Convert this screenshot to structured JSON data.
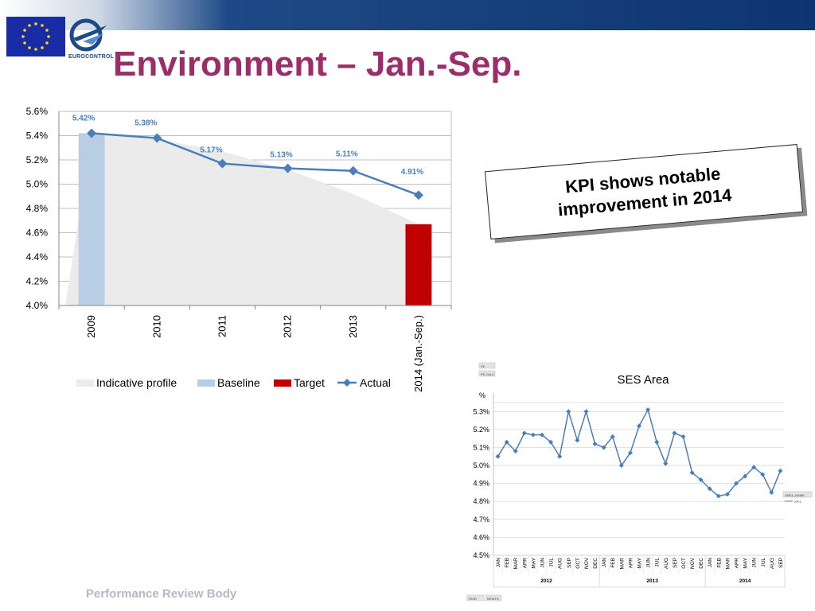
{
  "header": {
    "title": "Environment – Jan.-Sep.",
    "logo_text": "EUROCONTROL"
  },
  "callout": {
    "line1": "KPI shows notable",
    "line2": "improvement in 2014"
  },
  "footer": {
    "text": "Performance Review Body"
  },
  "colors": {
    "title": "#9b2d6b",
    "actual": "#4a7ebb",
    "baseline": "#b9cde5",
    "target": "#c00000",
    "profile": "#ebebeb",
    "grid": "#bfbfbf"
  },
  "chart_data": [
    {
      "type": "bar+line",
      "categories": [
        "2009",
        "2010",
        "2011",
        "2012",
        "2013",
        "2014  (Jan.-Sep.)"
      ],
      "ylim": [
        4.0,
        5.6
      ],
      "yticks": [
        "4.0%",
        "4.2%",
        "4.4%",
        "4.6%",
        "4.8%",
        "5.0%",
        "5.2%",
        "5.4%",
        "5.6%"
      ],
      "grid": true,
      "legend_position": "bottom",
      "series": [
        {
          "name": "Indicative profile",
          "kind": "area",
          "values": [
            5.42,
            5.37,
            5.27,
            5.12,
            4.92,
            4.67
          ]
        },
        {
          "name": "Baseline",
          "kind": "bar",
          "values": [
            5.42,
            null,
            null,
            null,
            null,
            null
          ]
        },
        {
          "name": "Target",
          "kind": "bar",
          "values": [
            null,
            null,
            null,
            null,
            null,
            4.67
          ]
        },
        {
          "name": "Actual",
          "kind": "line",
          "values": [
            5.42,
            5.38,
            5.17,
            5.13,
            5.11,
            4.91
          ],
          "labels": [
            "5.42%",
            "5.38%",
            "5.17%",
            "5.13%",
            "5.11%",
            "4.91%"
          ]
        }
      ]
    },
    {
      "type": "line",
      "title": "SES Area",
      "ylabel": "%",
      "ylim": [
        4.5,
        5.35
      ],
      "yticks": [
        "4.5%",
        "4.6%",
        "4.7%",
        "4.8%",
        "4.9%",
        "5.0%",
        "5.1%",
        "5.2%",
        "5.3%"
      ],
      "grid": true,
      "x": [
        "JAN",
        "FEB",
        "MAR",
        "APR",
        "MAY",
        "JUN",
        "JUL",
        "AUG",
        "SEP",
        "OCT",
        "NOV",
        "DEC",
        "JAN",
        "FEB",
        "MAR",
        "APR",
        "MAY",
        "JUN",
        "JUL",
        "AUG",
        "SEP",
        "OCT",
        "NOV",
        "DEC",
        "JAN",
        "FEB",
        "MAR",
        "APR",
        "MAY",
        "JUN",
        "JUL",
        "AUG",
        "SEP"
      ],
      "years": [
        "2012",
        "2013",
        "2014"
      ],
      "series": [
        {
          "name": "KPI1",
          "values": [
            5.05,
            5.13,
            5.08,
            5.18,
            5.17,
            5.17,
            5.13,
            5.05,
            5.3,
            5.14,
            5.3,
            5.12,
            5.1,
            5.16,
            5.0,
            5.07,
            5.22,
            5.31,
            5.13,
            5.01,
            5.18,
            5.16,
            4.96,
            4.92,
            4.87,
            4.83,
            4.84,
            4.9,
            4.94,
            4.99,
            4.95,
            4.85,
            4.97
          ]
        }
      ],
      "filter_labels": {
        "top1": "PE",
        "top2": "PE CALC",
        "legend_head": "AREA_NAME",
        "bottom1": "YEAR",
        "bottom2": "MONTH"
      }
    }
  ]
}
